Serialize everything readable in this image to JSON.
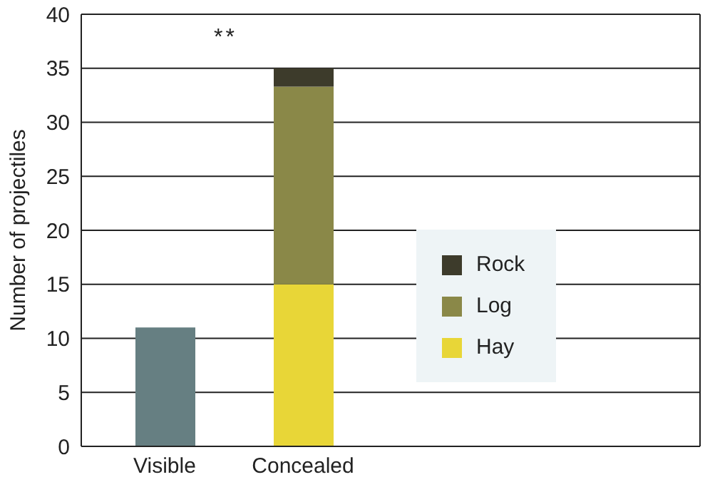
{
  "chart_data": {
    "type": "bar",
    "stacked": true,
    "ylabel": "Number of projectiles",
    "categories": [
      "Visible",
      "Concealed"
    ],
    "series": [
      {
        "color": "#667f82",
        "values": [
          11,
          null
        ]
      },
      {
        "name": "Hay",
        "color": "#e8d637",
        "values": [
          null,
          15
        ]
      },
      {
        "name": "Log",
        "color": "#8a8848",
        "values": [
          null,
          18.3
        ]
      },
      {
        "name": "Rock",
        "color": "#3d3b2b",
        "values": [
          null,
          1.7
        ]
      }
    ],
    "ylim": [
      0,
      40
    ],
    "yticks": [
      0,
      5,
      10,
      15,
      20,
      25,
      30,
      35,
      40
    ],
    "grid": "y",
    "legend": "right",
    "annotations": [
      "**"
    ]
  }
}
